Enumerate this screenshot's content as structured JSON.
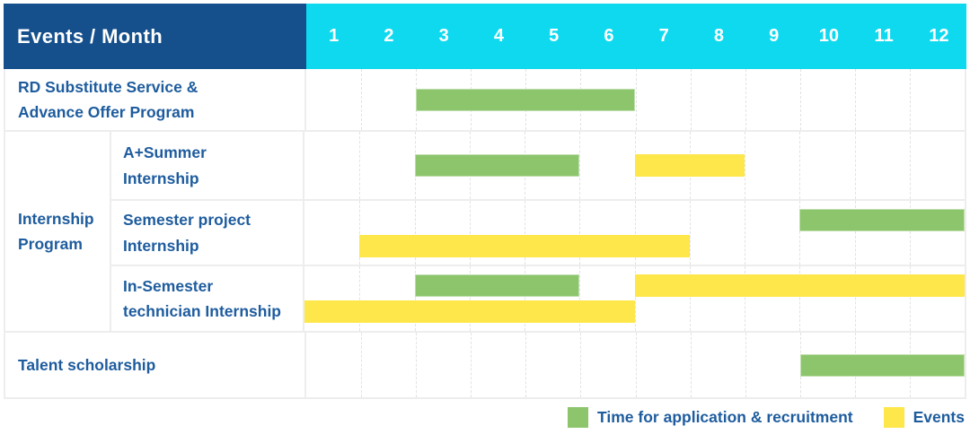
{
  "header": {
    "title": "Events / Month",
    "months": [
      "1",
      "2",
      "3",
      "4",
      "5",
      "6",
      "7",
      "8",
      "9",
      "10",
      "11",
      "12"
    ]
  },
  "colors": {
    "header_bg": "#15508c",
    "months_bg": "#0fd9ef",
    "text_blue": "#1e5c9e",
    "green": "#8cc56c",
    "yellow": "#fde74a"
  },
  "legend": {
    "items": [
      {
        "kind": "recruitment",
        "label": "Time for application & recruitment"
      },
      {
        "kind": "event",
        "label": "Events"
      }
    ]
  },
  "chart_data": {
    "type": "gantt",
    "x_unit": "month",
    "x_range": [
      1,
      12
    ],
    "bar_kinds": {
      "recruitment": "Time for application & recruitment",
      "event": "Events"
    },
    "group_label": "Internship\nProgram",
    "rows": [
      {
        "label": "RD Substitute Service &\nAdvance Offer Program",
        "group": null,
        "tracks": [
          [
            {
              "kind": "recruitment",
              "start_month": 3,
              "end_month": 6
            }
          ]
        ]
      },
      {
        "label": "A+Summer\nInternship",
        "group": "Internship Program",
        "tracks": [
          [
            {
              "kind": "recruitment",
              "start_month": 3,
              "end_month": 5
            },
            {
              "kind": "event",
              "start_month": 7,
              "end_month": 8
            }
          ]
        ]
      },
      {
        "label": "Semester project\nInternship",
        "group": "Internship Program",
        "tracks": [
          [
            {
              "kind": "recruitment",
              "start_month": 10,
              "end_month": 12
            }
          ],
          [
            {
              "kind": "event",
              "start_month": 2,
              "end_month": 7
            }
          ]
        ]
      },
      {
        "label": "In-Semester\ntechnician Internship",
        "group": "Internship Program",
        "tracks": [
          [
            {
              "kind": "recruitment",
              "start_month": 3,
              "end_month": 5
            },
            {
              "kind": "event",
              "start_month": 7,
              "end_month": 12
            }
          ],
          [
            {
              "kind": "event",
              "start_month": 1,
              "end_month": 6
            }
          ]
        ]
      },
      {
        "label": "Talent scholarship",
        "group": null,
        "tracks": [
          [
            {
              "kind": "recruitment",
              "start_month": 10,
              "end_month": 12
            }
          ]
        ]
      }
    ]
  }
}
